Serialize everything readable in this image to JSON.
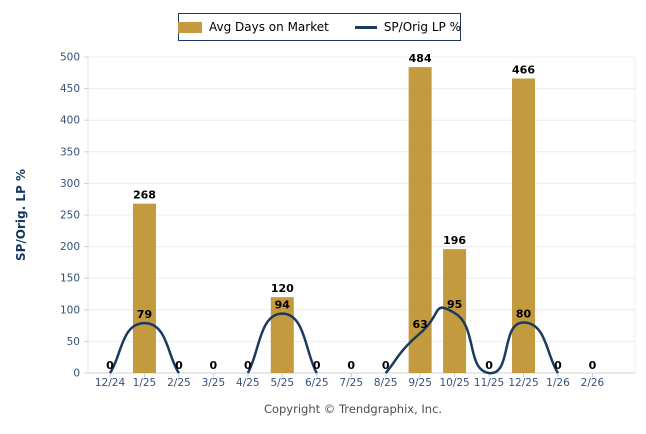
{
  "legend": {
    "items": [
      {
        "label": "Avg Days on Market",
        "swatch": "bar",
        "color": "#c49a3e"
      },
      {
        "label": "SP/Orig LP %",
        "swatch": "line",
        "color": "#1b3a5f"
      }
    ]
  },
  "footer": {
    "copyright": "Copyright © Trendgraphix, Inc."
  },
  "chart_data": {
    "type": "combo-bar-line",
    "title": "",
    "ylabel": "SP/Orig. LP %",
    "xlabel": "",
    "ylim": [
      0,
      500
    ],
    "ytick_step": 50,
    "grid": true,
    "legend_position": "top-center",
    "categories": [
      "12/24",
      "1/25",
      "2/25",
      "3/25",
      "4/25",
      "5/25",
      "6/25",
      "7/25",
      "8/25",
      "9/25",
      "10/25",
      "11/25",
      "12/25",
      "1/26",
      "2/26"
    ],
    "series": [
      {
        "name": "Avg Days on Market",
        "type": "bar",
        "color": "#c49a3e",
        "values": [
          0,
          268,
          0,
          0,
          0,
          120,
          0,
          0,
          0,
          484,
          196,
          0,
          466,
          0,
          0
        ]
      },
      {
        "name": "SP/Orig LP %",
        "type": "line",
        "color": "#1b3a5f",
        "values": [
          0,
          79,
          0,
          0,
          0,
          94,
          0,
          0,
          0,
          63,
          95,
          0,
          80,
          0,
          0
        ]
      }
    ],
    "colors": {
      "grid_line": "#ececec",
      "axis_line": "#d0d0d0",
      "tick_label": "#35507c",
      "value_label": "#000000"
    }
  }
}
